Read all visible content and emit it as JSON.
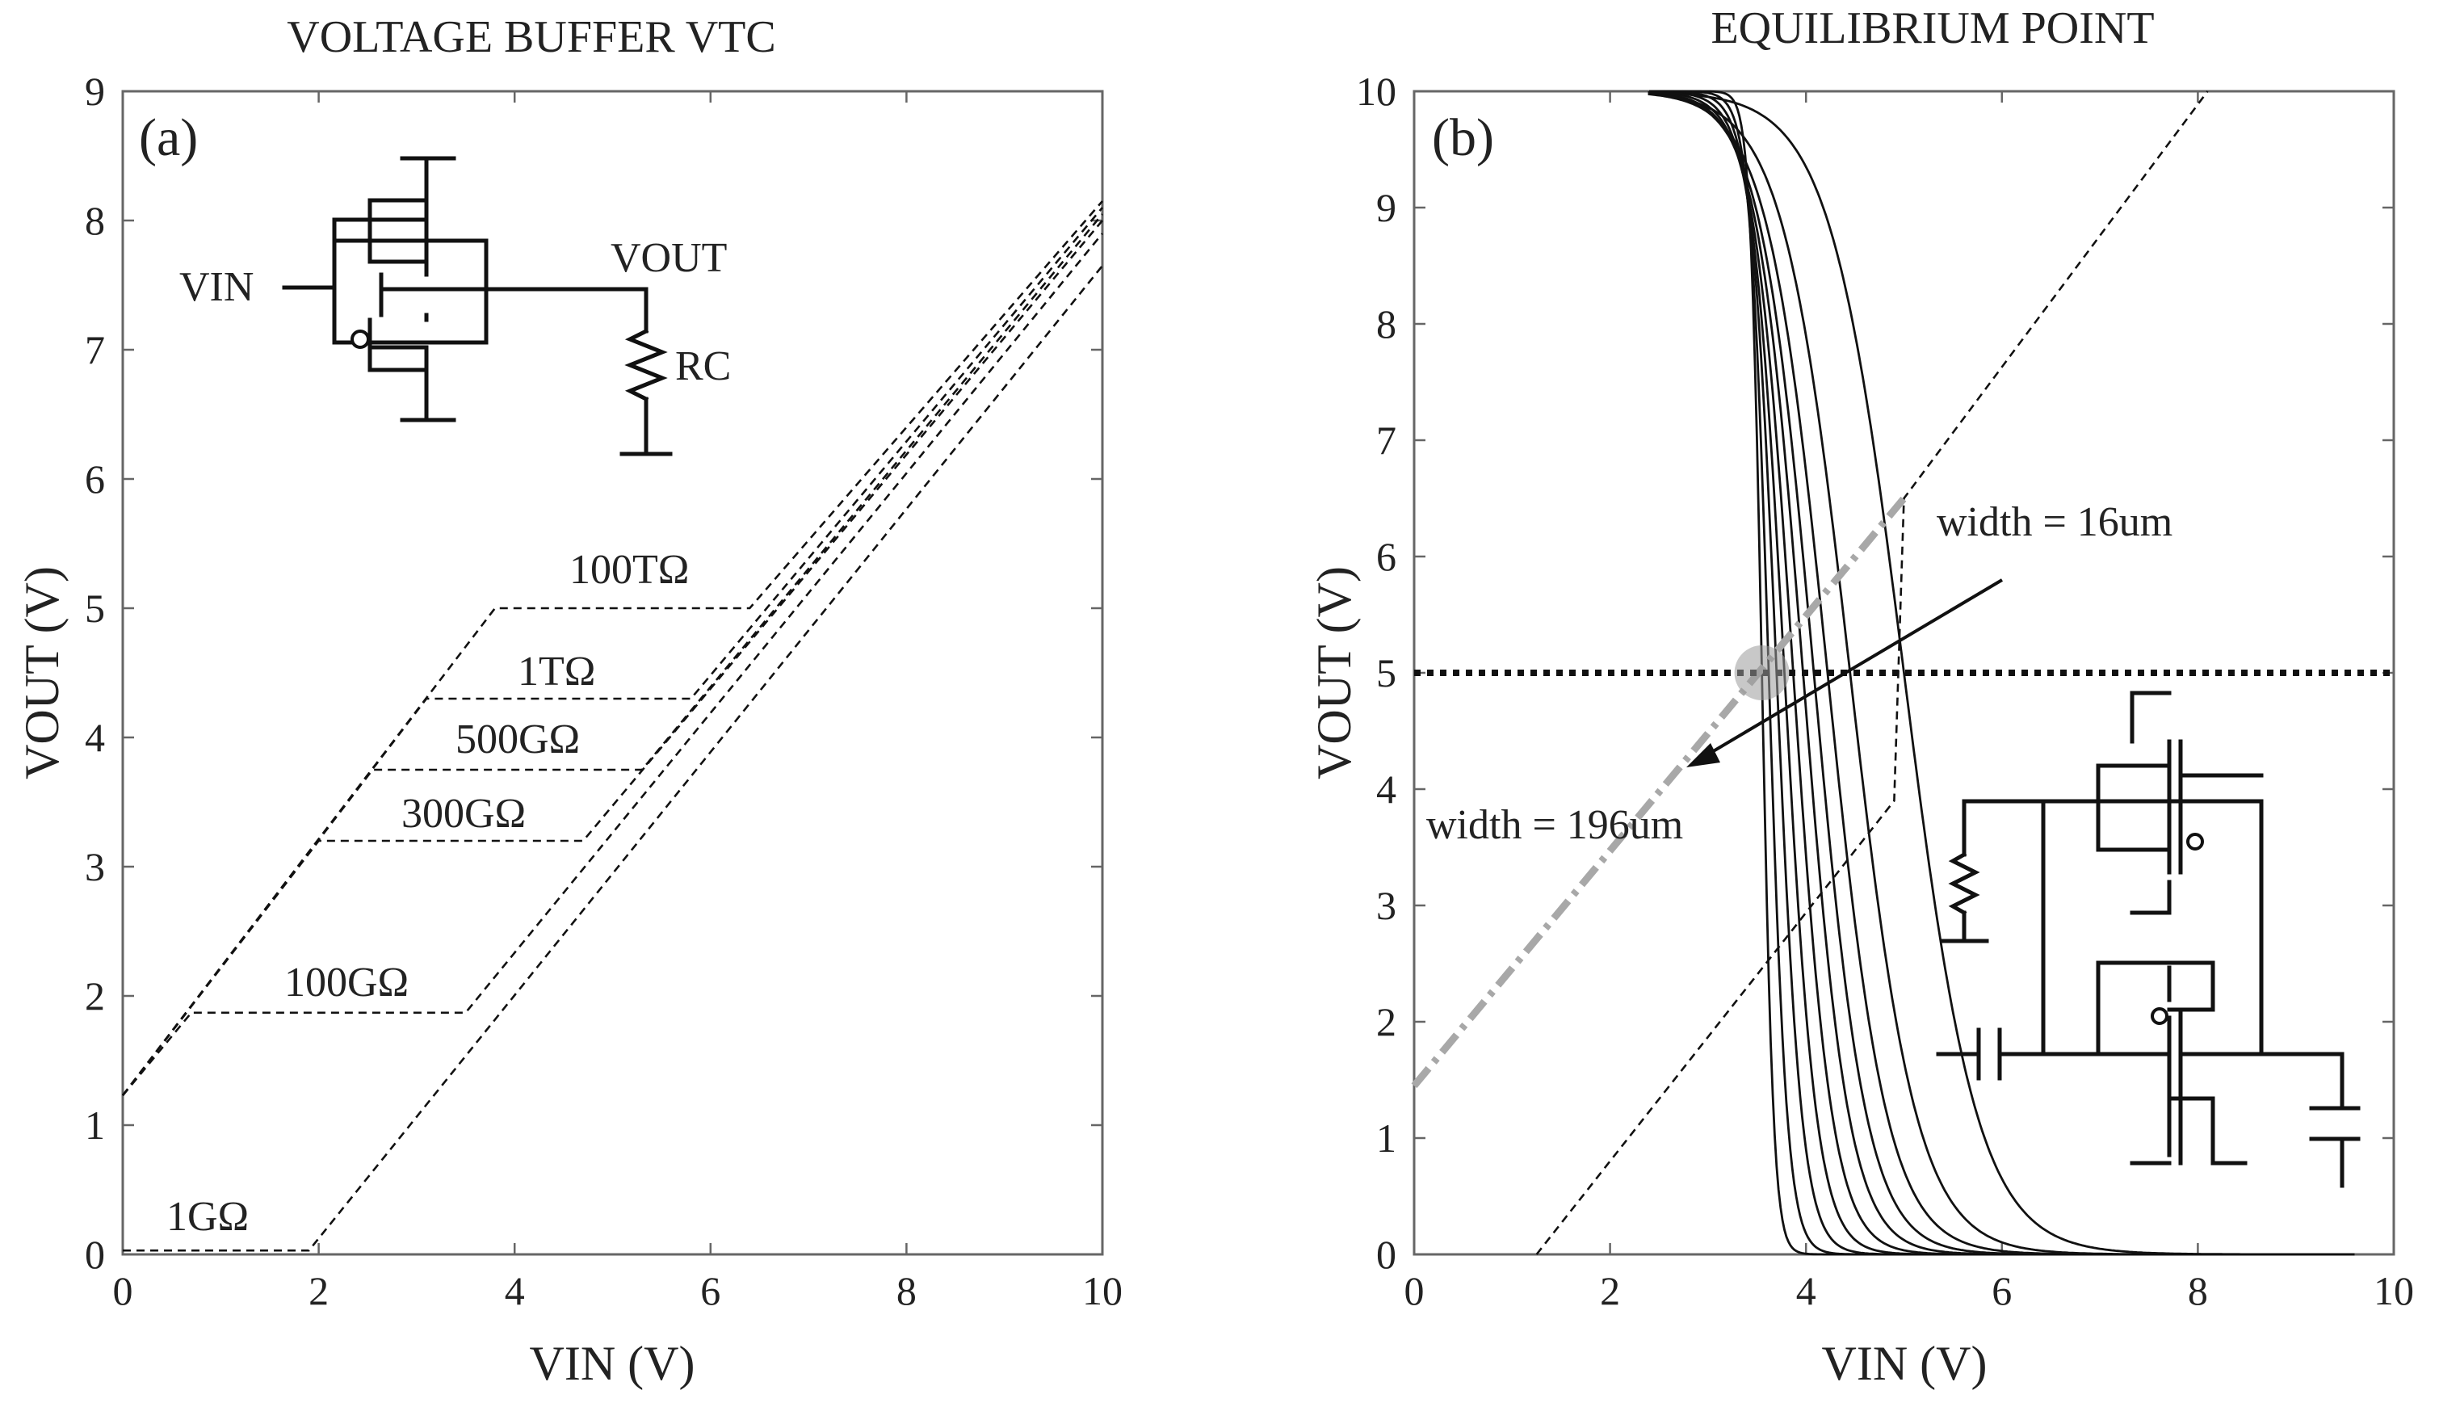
{
  "chart_data": [
    {
      "type": "line",
      "panel_label": "(a)",
      "title": "VOLTAGE BUFFER VTC",
      "xlabel": "VIN (V)",
      "ylabel": "VOUT (V)",
      "xlim": [
        0,
        10
      ],
      "ylim": [
        0,
        9
      ],
      "xticks": [
        "0",
        "2",
        "4",
        "6",
        "8",
        "10"
      ],
      "yticks": [
        "0",
        "1",
        "2",
        "3",
        "4",
        "5",
        "6",
        "7",
        "8",
        "9"
      ],
      "series": [
        {
          "name": "100TΩ",
          "style": "dashed",
          "points": [
            [
              0,
              1.23
            ],
            [
              3.8,
              5.0
            ],
            [
              6.4,
              5.0
            ],
            [
              10,
              8.15
            ]
          ]
        },
        {
          "name": "1TΩ",
          "style": "dashed",
          "points": [
            [
              0,
              1.23
            ],
            [
              3.1,
              4.3
            ],
            [
              5.8,
              4.3
            ],
            [
              10,
              8.1
            ]
          ]
        },
        {
          "name": "500GΩ",
          "style": "dashed",
          "points": [
            [
              0,
              1.23
            ],
            [
              2.55,
              3.75
            ],
            [
              5.3,
              3.75
            ],
            [
              10,
              8.05
            ]
          ]
        },
        {
          "name": "300GΩ",
          "style": "dashed",
          "points": [
            [
              0,
              1.23
            ],
            [
              2.0,
              3.2
            ],
            [
              4.7,
              3.2
            ],
            [
              10,
              8.0
            ]
          ]
        },
        {
          "name": "100GΩ",
          "style": "dashed",
          "points": [
            [
              0,
              1.23
            ],
            [
              0.7,
              1.87
            ],
            [
              3.5,
              1.87
            ],
            [
              10,
              7.9
            ]
          ]
        },
        {
          "name": "1GΩ",
          "style": "dashed",
          "points": [
            [
              0,
              0.03
            ],
            [
              1.9,
              0.03
            ],
            [
              10,
              7.65
            ]
          ]
        }
      ],
      "annotations": [
        "100TΩ",
        "1TΩ",
        "500GΩ",
        "300GΩ",
        "100GΩ",
        "1GΩ"
      ],
      "inset_labels": {
        "vin": "VIN",
        "vout": "VOUT",
        "rc": "RC"
      }
    },
    {
      "type": "line",
      "panel_label": "(b)",
      "title": "EQUILIBRIUM POINT",
      "xlabel": "VIN (V)",
      "ylabel": "VOUT (V)",
      "xlim": [
        0,
        10
      ],
      "ylim": [
        0,
        10
      ],
      "xticks": [
        "0",
        "2",
        "4",
        "6",
        "8",
        "10"
      ],
      "yticks": [
        "0",
        "1",
        "2",
        "3",
        "4",
        "5",
        "6",
        "7",
        "8",
        "9",
        "10"
      ],
      "inverter_switching_points": [
        3.55,
        3.62,
        3.7,
        3.78,
        3.87,
        3.97,
        4.08,
        4.22,
        4.45,
        5.0
      ],
      "series": [
        {
          "name": "VTC width = 16um",
          "style": "dashed",
          "points": [
            [
              1.25,
              0
            ],
            [
              4.9,
              3.9
            ],
            [
              5.0,
              6.5
            ],
            [
              8.1,
              10
            ]
          ]
        },
        {
          "name": "width = 196um",
          "style": "dash-dot gray",
          "points": [
            [
              0,
              1.45
            ],
            [
              5.0,
              6.5
            ]
          ]
        },
        {
          "name": "VOUT = 5 V",
          "style": "dotted thick",
          "points": [
            [
              0,
              5
            ],
            [
              10,
              5
            ]
          ]
        }
      ],
      "equilibrium_point": [
        3.55,
        5.0
      ],
      "annotations": [
        "width = 16um",
        "width = 196um"
      ]
    }
  ]
}
